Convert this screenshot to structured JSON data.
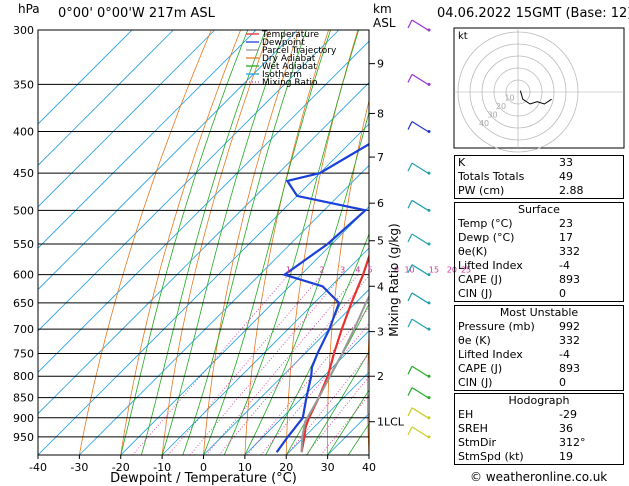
{
  "header": {
    "pressure_unit": "hPa",
    "location": "0°00'  0°00'W  217m  ASL",
    "height_unit": "km",
    "height_unit2": "ASL",
    "datetime": "04.06.2022  15GMT  (Base: 12)"
  },
  "chart_data": {
    "type": "line",
    "title": "",
    "xlabel": "Dewpoint / Temperature (°C)",
    "ylabel": "hPa",
    "y2label": "Mixing Ratio (g/kg)",
    "xlim": [
      -40,
      40
    ],
    "ylim": [
      1000,
      300
    ],
    "y_scale": "log",
    "skew": "skew-T",
    "x_ticks": [
      -40,
      -30,
      -20,
      -10,
      0,
      10,
      20,
      30,
      40
    ],
    "pressure_levels": [
      300,
      350,
      400,
      450,
      500,
      550,
      600,
      650,
      700,
      750,
      800,
      850,
      900,
      950
    ],
    "km_ticks": [
      {
        "label": "9",
        "p": 330
      },
      {
        "label": "8",
        "p": 380
      },
      {
        "label": "7",
        "p": 430
      },
      {
        "label": "6",
        "p": 490
      },
      {
        "label": "5",
        "p": 545
      },
      {
        "label": "4",
        "p": 620
      },
      {
        "label": "3",
        "p": 705
      },
      {
        "label": "2",
        "p": 800
      },
      {
        "label": "1LCL",
        "p": 910
      }
    ],
    "mixing_ratio_labels": [
      "1",
      "2",
      "3",
      "4",
      "5",
      "8",
      "10",
      "15",
      "20",
      "25"
    ],
    "legend": {
      "placement": "top-left",
      "entries": [
        {
          "name": "Temperature",
          "color": "#e8312e",
          "style": "solid"
        },
        {
          "name": "Dewpoint",
          "color": "#1c3fd6",
          "style": "solid"
        },
        {
          "name": "Parcel Trajectory",
          "color": "#999999",
          "style": "solid"
        },
        {
          "name": "Dry Adiabat",
          "color": "#e87820",
          "style": "solid"
        },
        {
          "name": "Wet Adiabat",
          "color": "#22aa22",
          "style": "solid"
        },
        {
          "name": "Isotherm",
          "color": "#22a0e0",
          "style": "solid"
        },
        {
          "name": "Mixing Ratio",
          "color": "#cc3399",
          "style": "dotted"
        }
      ]
    },
    "series": [
      {
        "name": "Temperature",
        "color": "#e8312e",
        "points": [
          [
            992,
            23
          ],
          [
            950,
            20
          ],
          [
            925,
            18
          ],
          [
            900,
            16.5
          ],
          [
            850,
            14
          ],
          [
            800,
            11
          ],
          [
            750,
            7
          ],
          [
            700,
            3
          ],
          [
            650,
            -1
          ],
          [
            600,
            -5
          ],
          [
            550,
            -10
          ],
          [
            500,
            -16
          ],
          [
            470,
            -18
          ],
          [
            450,
            -21
          ],
          [
            400,
            -28
          ],
          [
            350,
            -37
          ],
          [
            300,
            -47
          ]
        ]
      },
      {
        "name": "Dewpoint",
        "color": "#1c3fd6",
        "points": [
          [
            992,
            17
          ],
          [
            950,
            16
          ],
          [
            900,
            15
          ],
          [
            850,
            11
          ],
          [
            800,
            7
          ],
          [
            780,
            5
          ],
          [
            750,
            3
          ],
          [
            700,
            0
          ],
          [
            650,
            -4
          ],
          [
            620,
            -12
          ],
          [
            600,
            -24
          ],
          [
            550,
            -21
          ],
          [
            500,
            -20
          ],
          [
            480,
            -40
          ],
          [
            460,
            -46
          ],
          [
            450,
            -40
          ],
          [
            400,
            -33
          ],
          [
            350,
            -44
          ],
          [
            300,
            -54
          ]
        ]
      },
      {
        "name": "Parcel Trajectory",
        "color": "#999999",
        "points": [
          [
            992,
            23
          ],
          [
            950,
            19.5
          ],
          [
            910,
            16.5
          ],
          [
            850,
            14
          ],
          [
            800,
            11.5
          ],
          [
            750,
            9
          ],
          [
            700,
            6
          ],
          [
            650,
            2.5
          ],
          [
            600,
            -1
          ],
          [
            550,
            -5.5
          ],
          [
            500,
            -10.5
          ],
          [
            450,
            -16.5
          ],
          [
            400,
            -23.5
          ],
          [
            350,
            -31.5
          ],
          [
            300,
            -41
          ]
        ]
      }
    ],
    "wind_barbs": [
      {
        "p": 300,
        "color": "#9b2fd0"
      },
      {
        "p": 350,
        "color": "#9b2fd0"
      },
      {
        "p": 400,
        "color": "#2233cc"
      },
      {
        "p": 450,
        "color": "#22a0b0"
      },
      {
        "p": 500,
        "color": "#22a0b0"
      },
      {
        "p": 550,
        "color": "#22a0b0"
      },
      {
        "p": 600,
        "color": "#22a0b0"
      },
      {
        "p": 650,
        "color": "#22a0b0"
      },
      {
        "p": 700,
        "color": "#22a0b0"
      },
      {
        "p": 800,
        "color": "#22aa22"
      },
      {
        "p": 850,
        "color": "#22aa22"
      },
      {
        "p": 900,
        "color": "#cccc22"
      },
      {
        "p": 950,
        "color": "#cccc22"
      }
    ],
    "hodograph": {
      "label": "kt",
      "ring_labels": [
        "10",
        "20",
        "30",
        "40"
      ],
      "points": [
        [
          2,
          1
        ],
        [
          4,
          -6
        ],
        [
          10,
          -10
        ],
        [
          16,
          -8
        ],
        [
          22,
          -10
        ],
        [
          28,
          -6
        ]
      ]
    }
  },
  "indices": {
    "rows": [
      {
        "label": "K",
        "value": "33"
      },
      {
        "label": "Totals Totals",
        "value": "49"
      },
      {
        "label": "PW (cm)",
        "value": "2.88"
      }
    ]
  },
  "surface": {
    "title": "Surface",
    "rows": [
      {
        "label": "Temp (°C)",
        "value": "23"
      },
      {
        "label": "Dewp (°C)",
        "value": "17"
      },
      {
        "label": "θe(K)",
        "value": "332"
      },
      {
        "label": "Lifted Index",
        "value": "-4"
      },
      {
        "label": "CAPE (J)",
        "value": "893"
      },
      {
        "label": "CIN (J)",
        "value": "0"
      }
    ]
  },
  "most_unstable": {
    "title": "Most Unstable",
    "rows": [
      {
        "label": "Pressure (mb)",
        "value": "992"
      },
      {
        "label": "θe (K)",
        "value": "332"
      },
      {
        "label": "Lifted Index",
        "value": "-4"
      },
      {
        "label": "CAPE (J)",
        "value": "893"
      },
      {
        "label": "CIN (J)",
        "value": "0"
      }
    ]
  },
  "hodograph_table": {
    "title": "Hodograph",
    "rows": [
      {
        "label": "EH",
        "value": "-29"
      },
      {
        "label": "SREH",
        "value": "36"
      },
      {
        "label": "StmDir",
        "value": "312°"
      },
      {
        "label": "StmSpd (kt)",
        "value": "19"
      }
    ]
  },
  "credit": "© weatheronline.co.uk"
}
